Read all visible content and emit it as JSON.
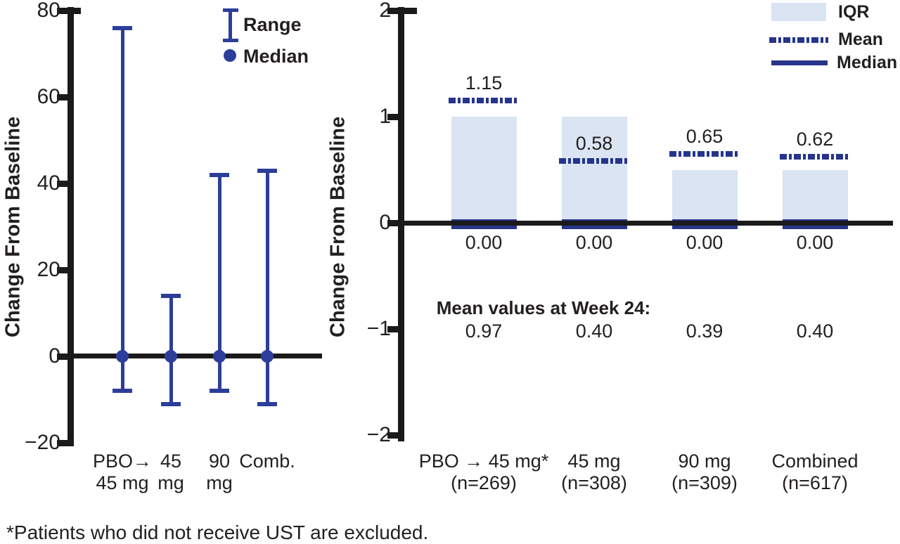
{
  "footnote": "*Patients who did not receive UST are excluded.",
  "colors": {
    "range_blue": "#2d3e9a",
    "navy": "#27348b",
    "iqr_fill": "#dae4f2",
    "axis": "#1a1a1a",
    "text": "#231f20",
    "background": "#ffffff"
  },
  "chart_data": [
    {
      "type": "range",
      "panel": "left",
      "title": "",
      "xlabel": "",
      "ylabel": "Change From Baseline",
      "ylim": [
        -20,
        80
      ],
      "yticks": [
        80,
        60,
        40,
        20,
        0,
        -20
      ],
      "ytick_labels": [
        "80",
        "60",
        "40",
        "20",
        "0",
        "−20"
      ],
      "grid": false,
      "categories": [
        "PBO→ 45 mg",
        "45 mg",
        "90 mg",
        "Comb."
      ],
      "category_lines": [
        [
          "PBO→",
          "45 mg"
        ],
        [
          "45",
          "mg"
        ],
        [
          "90",
          "mg"
        ],
        [
          "Comb.",
          ""
        ]
      ],
      "series": [
        {
          "name": "Range max",
          "values": [
            76,
            14,
            42,
            43
          ]
        },
        {
          "name": "Range min",
          "values": [
            -8,
            -11,
            -8,
            -11
          ]
        },
        {
          "name": "Median",
          "values": [
            0,
            0,
            0,
            0
          ]
        }
      ],
      "legend": [
        {
          "label": "Range",
          "marker": "error-bar"
        },
        {
          "label": "Median",
          "marker": "dot"
        }
      ],
      "legend_position": "top-right-inside"
    },
    {
      "type": "bar",
      "panel": "right",
      "title": "",
      "xlabel": "",
      "ylabel": "Change From Baseline",
      "ylim": [
        -2,
        2
      ],
      "yticks": [
        2,
        1,
        0,
        -1,
        -2
      ],
      "ytick_labels": [
        "2",
        "1",
        "0",
        "−1",
        "−2"
      ],
      "grid": false,
      "categories": [
        "PBO → 45 mg* (n=269)",
        "45 mg (n=308)",
        "90 mg (n=309)",
        "Combined (n=617)"
      ],
      "category_lines": [
        [
          "PBO → 45 mg*",
          "(n=269)"
        ],
        [
          "45 mg",
          "(n=308)"
        ],
        [
          "90 mg",
          "(n=309)"
        ],
        [
          "Combined",
          "(n=617)"
        ]
      ],
      "iqr": {
        "lower": [
          0,
          0,
          0,
          0
        ],
        "upper": [
          1.0,
          1.0,
          0.5,
          0.5
        ]
      },
      "mean": {
        "values": [
          1.15,
          0.58,
          0.65,
          0.62
        ],
        "labels": [
          "1.15",
          "0.58",
          "0.65",
          "0.62"
        ]
      },
      "median": {
        "values": [
          0,
          0,
          0,
          0
        ],
        "labels": [
          "0.00",
          "0.00",
          "0.00",
          "0.00"
        ]
      },
      "annotation": {
        "title": "Mean values at Week 24:",
        "values": [
          "0.97",
          "0.40",
          "0.39",
          "0.40"
        ]
      },
      "legend": [
        {
          "label": "IQR",
          "marker": "box"
        },
        {
          "label": "Mean",
          "marker": "dashed-line"
        },
        {
          "label": "Median",
          "marker": "solid-line"
        }
      ],
      "legend_position": "top-right-inside"
    }
  ]
}
